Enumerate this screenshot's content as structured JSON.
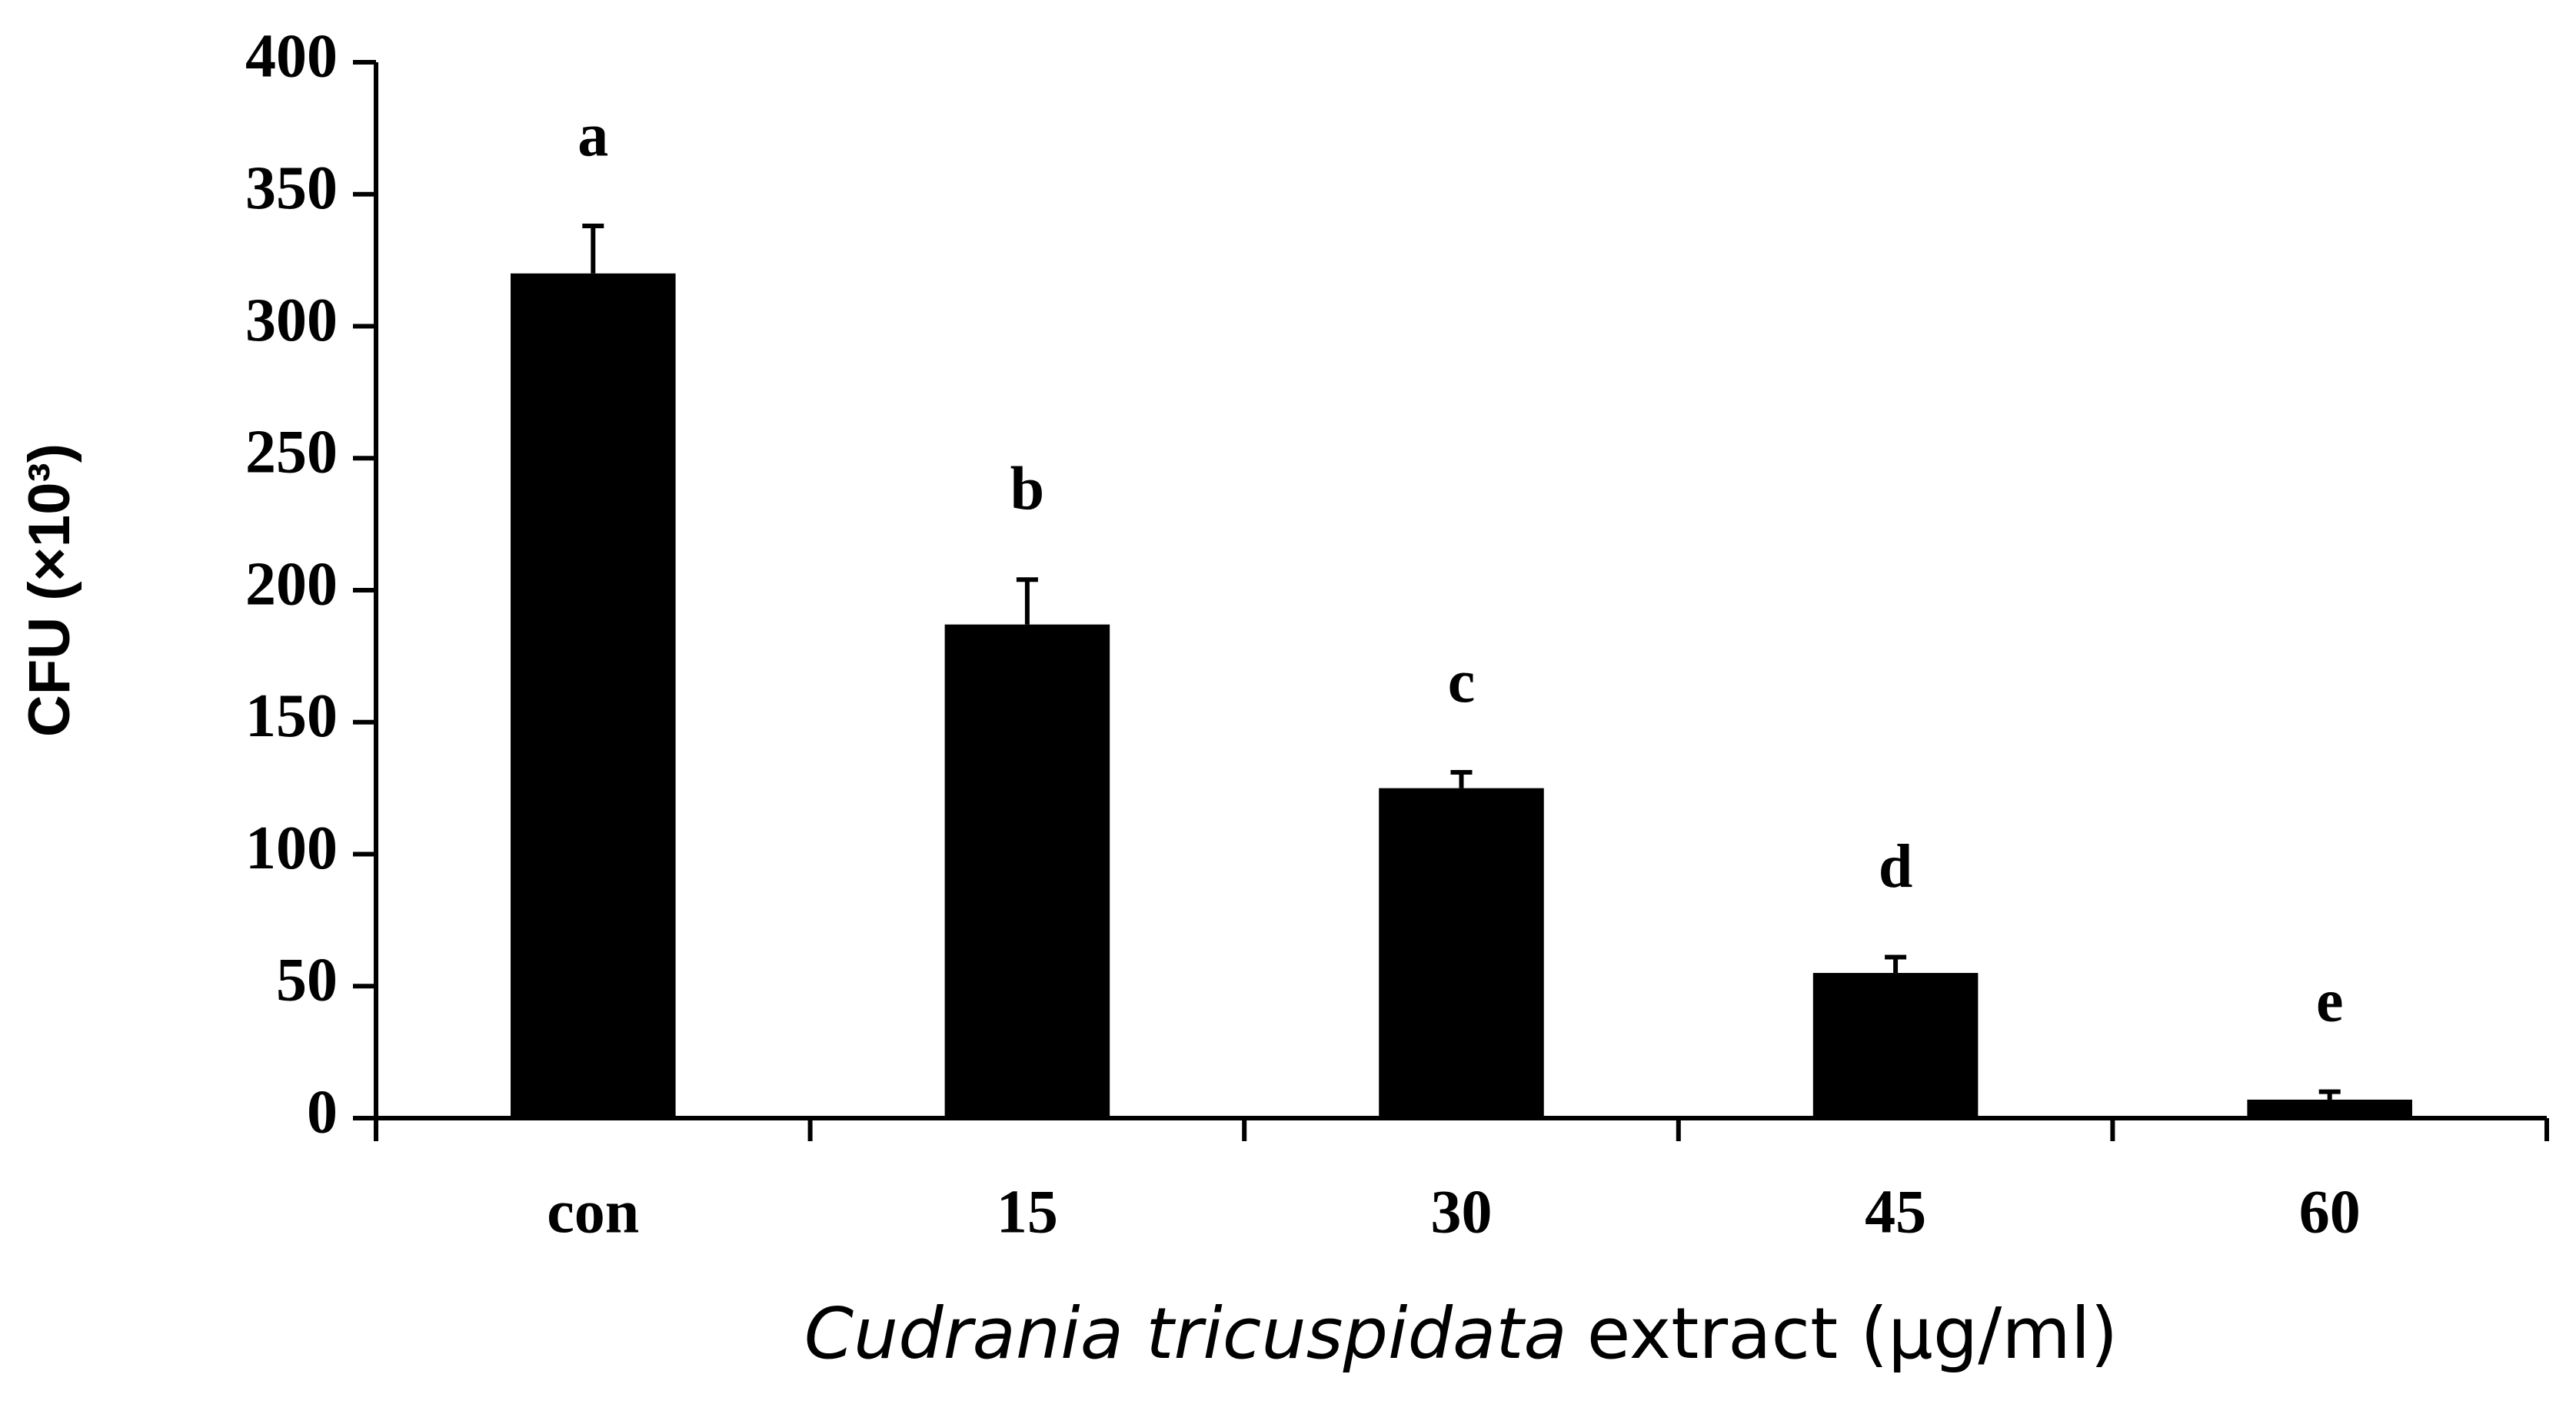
{
  "chart_data": {
    "type": "bar",
    "x_label": {
      "italic": "Cudrania tricuspidata",
      "text": "extract (μg/ml)"
    },
    "y_label": "CFU (×10³)",
    "categories": [
      "con",
      "15",
      "30",
      "45",
      "60"
    ],
    "values": [
      320,
      187,
      125,
      55,
      7
    ],
    "errors": [
      18,
      17,
      6,
      6,
      3
    ],
    "annotations": [
      "a",
      "b",
      "c",
      "d",
      "e"
    ],
    "color": "#000000",
    "ylim": [
      0,
      400
    ],
    "yticks": [
      0,
      50,
      100,
      150,
      200,
      250,
      300,
      350,
      400
    ],
    "grid": false
  }
}
